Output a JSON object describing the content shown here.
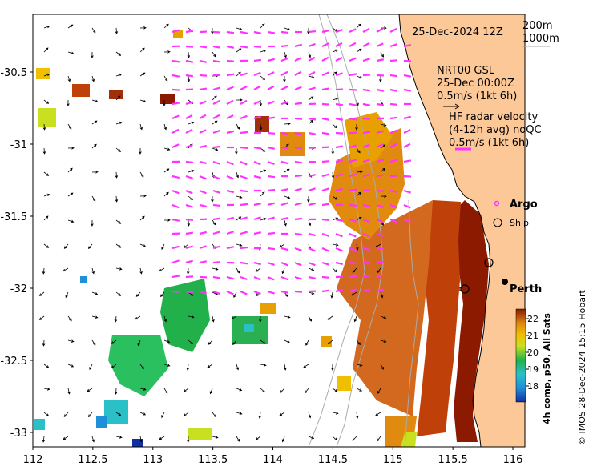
{
  "title_date": "25-Dec-2024 12Z",
  "depth_contours": [
    "200m",
    "1000m"
  ],
  "model_label": [
    "NRT00 GSL",
    "25-Dec 00:00Z",
    "0.5m/s (1kt 6h)"
  ],
  "radar_label": [
    "HF radar velocity",
    "(4-12h avg) noQC",
    "0.5m/s (1kt 6h)"
  ],
  "legend": {
    "argo": "Argo",
    "ship": "Ship"
  },
  "city": "Perth",
  "colorbar": {
    "title": "4h comp, p50, All Sats",
    "ticks": [
      "22",
      "21",
      "20",
      "19",
      "18"
    ]
  },
  "credit": "© IMOS 28-Dec-2024 15:15 Hobart",
  "map_data": {
    "lon_ticks": [
      "112",
      "112.5",
      "113",
      "113.5",
      "114",
      "114.5",
      "115",
      "115.5",
      "116"
    ],
    "lat_ticks": [
      "-30.5",
      "-31",
      "-31.5",
      "-32",
      "-32.5",
      "-33"
    ],
    "lon_range": [
      112,
      116.1
    ],
    "lat_range": [
      -30.1,
      -33.1
    ]
  },
  "colors": {
    "land": "#fdc897",
    "radar_arrow": "#ff33ff",
    "coast_dark": "#8b1a00",
    "warm": "#d2691e",
    "mid": "#e8a000",
    "cool": "#2ab02a",
    "cyan": "#2ac0c8"
  }
}
